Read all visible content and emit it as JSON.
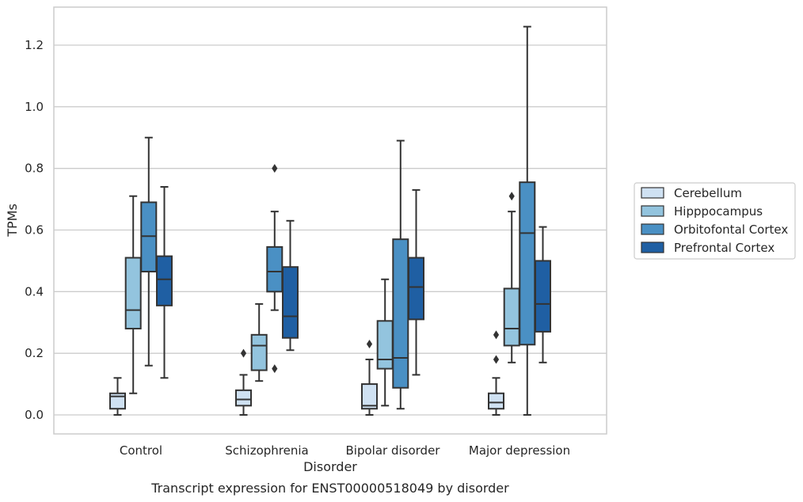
{
  "chart_data": {
    "type": "box",
    "xlabel": "Disorder",
    "ylabel": "TPMs",
    "caption": "Transcript expression for ENST00000518049 by disorder",
    "ylim": [
      -0.06,
      1.32
    ],
    "yticks": [
      "0.0",
      "0.2",
      "0.4",
      "0.6",
      "0.8",
      "1.0",
      "1.2"
    ],
    "grid": "horizontal",
    "legend_position": "right",
    "categories": [
      "Control",
      "Schizophrenia",
      "Bipolar disorder",
      "Major depression"
    ],
    "series": [
      {
        "name": "Cerebellum",
        "color": "#cfe1f2",
        "boxes": [
          {
            "whislo": 0.0,
            "q1": 0.02,
            "med": 0.06,
            "q3": 0.07,
            "whishi": 0.12,
            "fliers": []
          },
          {
            "whislo": 0.0,
            "q1": 0.03,
            "med": 0.05,
            "q3": 0.08,
            "whishi": 0.13,
            "fliers": [
              0.2
            ]
          },
          {
            "whislo": 0.0,
            "q1": 0.02,
            "med": 0.03,
            "q3": 0.1,
            "whishi": 0.18,
            "fliers": [
              0.23
            ]
          },
          {
            "whislo": 0.0,
            "q1": 0.02,
            "med": 0.04,
            "q3": 0.07,
            "whishi": 0.12,
            "fliers": [
              0.18,
              0.26
            ]
          }
        ]
      },
      {
        "name": "Hipppocampus",
        "color": "#93c4de",
        "boxes": [
          {
            "whislo": 0.07,
            "q1": 0.28,
            "med": 0.34,
            "q3": 0.51,
            "whishi": 0.71,
            "fliers": []
          },
          {
            "whislo": 0.11,
            "q1": 0.145,
            "med": 0.225,
            "q3": 0.26,
            "whishi": 0.36,
            "fliers": []
          },
          {
            "whislo": 0.03,
            "q1": 0.15,
            "med": 0.18,
            "q3": 0.305,
            "whishi": 0.44,
            "fliers": []
          },
          {
            "whislo": 0.17,
            "q1": 0.225,
            "med": 0.28,
            "q3": 0.41,
            "whishi": 0.66,
            "fliers": [
              0.71
            ]
          }
        ]
      },
      {
        "name": "Orbitofontal Cortex",
        "color": "#4a90c4",
        "boxes": [
          {
            "whislo": 0.16,
            "q1": 0.465,
            "med": 0.58,
            "q3": 0.69,
            "whishi": 0.9,
            "fliers": []
          },
          {
            "whislo": 0.34,
            "q1": 0.4,
            "med": 0.465,
            "q3": 0.545,
            "whishi": 0.66,
            "fliers": [
              0.15,
              0.8
            ]
          },
          {
            "whislo": 0.02,
            "q1": 0.088,
            "med": 0.185,
            "q3": 0.57,
            "whishi": 0.89,
            "fliers": []
          },
          {
            "whislo": 0.0,
            "q1": 0.228,
            "med": 0.59,
            "q3": 0.755,
            "whishi": 1.26,
            "fliers": []
          }
        ]
      },
      {
        "name": "Prefrontal Cortex",
        "color": "#1f5fa3",
        "boxes": [
          {
            "whislo": 0.12,
            "q1": 0.355,
            "med": 0.44,
            "q3": 0.515,
            "whishi": 0.74,
            "fliers": []
          },
          {
            "whislo": 0.21,
            "q1": 0.25,
            "med": 0.32,
            "q3": 0.48,
            "whishi": 0.63,
            "fliers": []
          },
          {
            "whislo": 0.13,
            "q1": 0.31,
            "med": 0.415,
            "q3": 0.51,
            "whishi": 0.73,
            "fliers": []
          },
          {
            "whislo": 0.17,
            "q1": 0.27,
            "med": 0.36,
            "q3": 0.5,
            "whishi": 0.61,
            "fliers": []
          }
        ]
      }
    ],
    "style": {
      "edge_color": "#333333",
      "grid_color": "#cccccc",
      "frame_color": "#cccccc",
      "background": "#ffffff"
    }
  }
}
